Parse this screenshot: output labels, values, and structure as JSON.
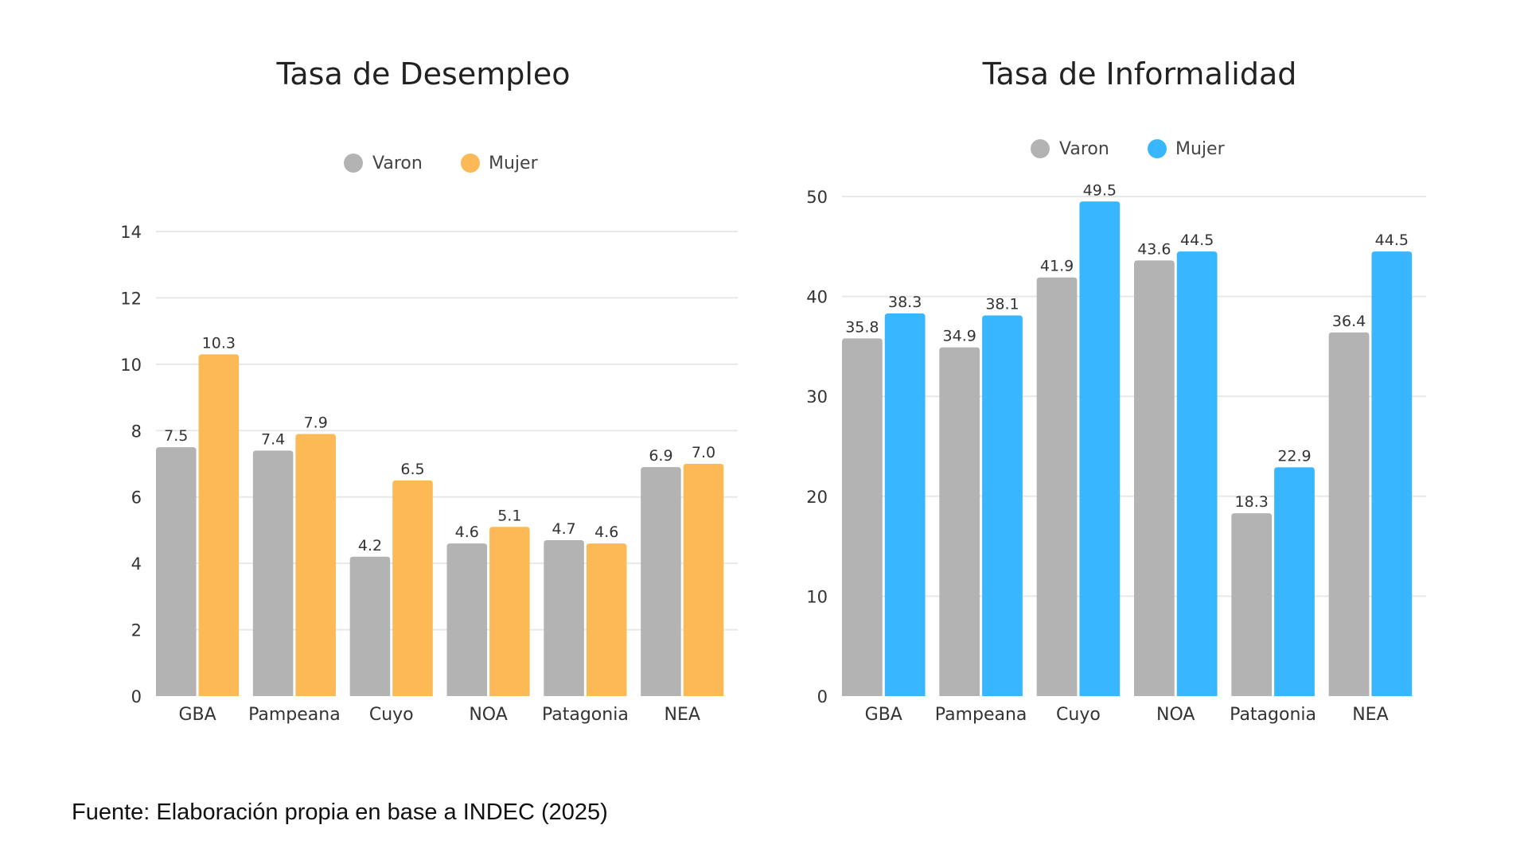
{
  "footnote": "Fuente: Elaboración propia en base a INDEC (2025)",
  "chart_data": [
    {
      "type": "bar",
      "title": "Tasa de Desempleo",
      "categories": [
        "GBA",
        "Pampeana",
        "Cuyo",
        "NOA",
        "Patagonia",
        "NEA"
      ],
      "series": [
        {
          "name": "Varon",
          "color": "#b3b3b3",
          "values": [
            7.5,
            7.4,
            4.2,
            4.6,
            4.7,
            6.9
          ],
          "labels": [
            "7.5",
            "7.4",
            "4.2",
            "4.6",
            "4.7",
            "6.9"
          ]
        },
        {
          "name": "Mujer",
          "color": "#fdb955",
          "values": [
            10.3,
            7.9,
            6.5,
            5.1,
            4.6,
            7.0
          ],
          "labels": [
            "10.3",
            "7.9",
            "6.5",
            "5.1",
            "4.6",
            "7.0"
          ]
        }
      ],
      "yticks": [
        0,
        2,
        4,
        6,
        8,
        10,
        12,
        14
      ],
      "ylim": [
        0,
        14
      ],
      "xlabel": "",
      "ylabel": "",
      "grid": true,
      "legend": "top-center"
    },
    {
      "type": "bar",
      "title": "Tasa de Informalidad",
      "categories": [
        "GBA",
        "Pampeana",
        "Cuyo",
        "NOA",
        "Patagonia",
        "NEA"
      ],
      "series": [
        {
          "name": "Varon",
          "color": "#b3b3b3",
          "values": [
            35.8,
            34.9,
            41.9,
            43.6,
            18.3,
            36.4
          ],
          "labels": [
            "35.8",
            "34.9",
            "41.9",
            "43.6",
            "18.3",
            "36.4"
          ]
        },
        {
          "name": "Mujer",
          "color": "#38b6ff",
          "values": [
            38.3,
            38.1,
            49.5,
            44.5,
            22.9,
            44.5
          ],
          "labels": [
            "38.3",
            "38.1",
            "49.5",
            "44.5",
            "22.9",
            "44.5"
          ]
        }
      ],
      "yticks": [
        0,
        10,
        20,
        30,
        40,
        50
      ],
      "ylim": [
        0,
        50
      ],
      "xlabel": "",
      "ylabel": "",
      "grid": true,
      "legend": "top-center"
    }
  ]
}
